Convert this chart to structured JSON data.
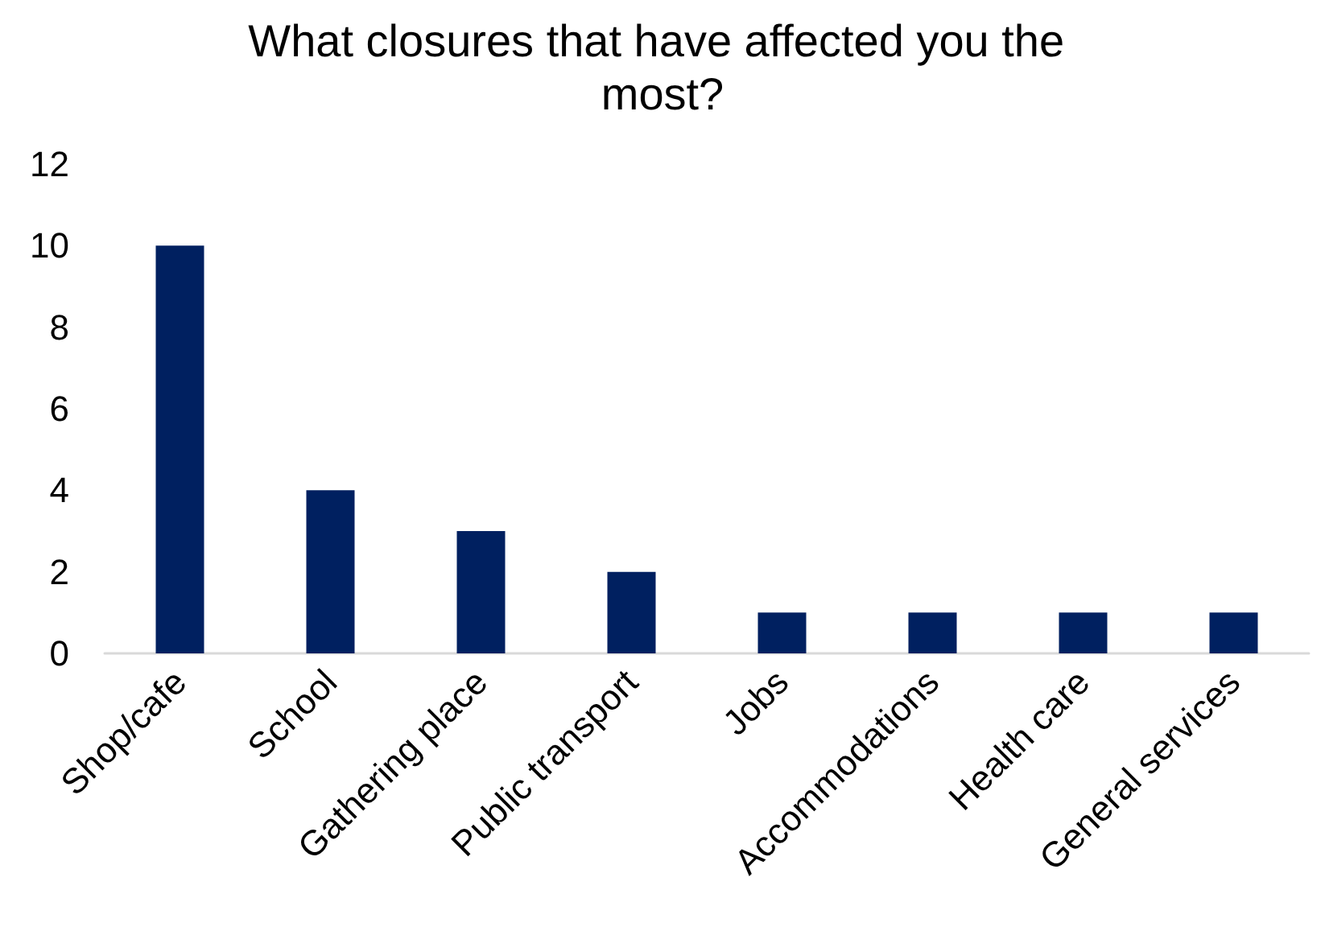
{
  "chart_data": {
    "type": "bar",
    "title": "What closures that have affected you the most?",
    "categories": [
      "Shop/cafe",
      "School",
      "Gathering place",
      "Public transport",
      "Jobs",
      "Accommodations",
      "Health care",
      "General services"
    ],
    "values": [
      10,
      4,
      3,
      2,
      1,
      1,
      1,
      1
    ],
    "color": "#002060",
    "ylim": [
      0,
      12
    ],
    "yticks": [
      0,
      2,
      4,
      6,
      8,
      10,
      12
    ],
    "grid": false
  }
}
